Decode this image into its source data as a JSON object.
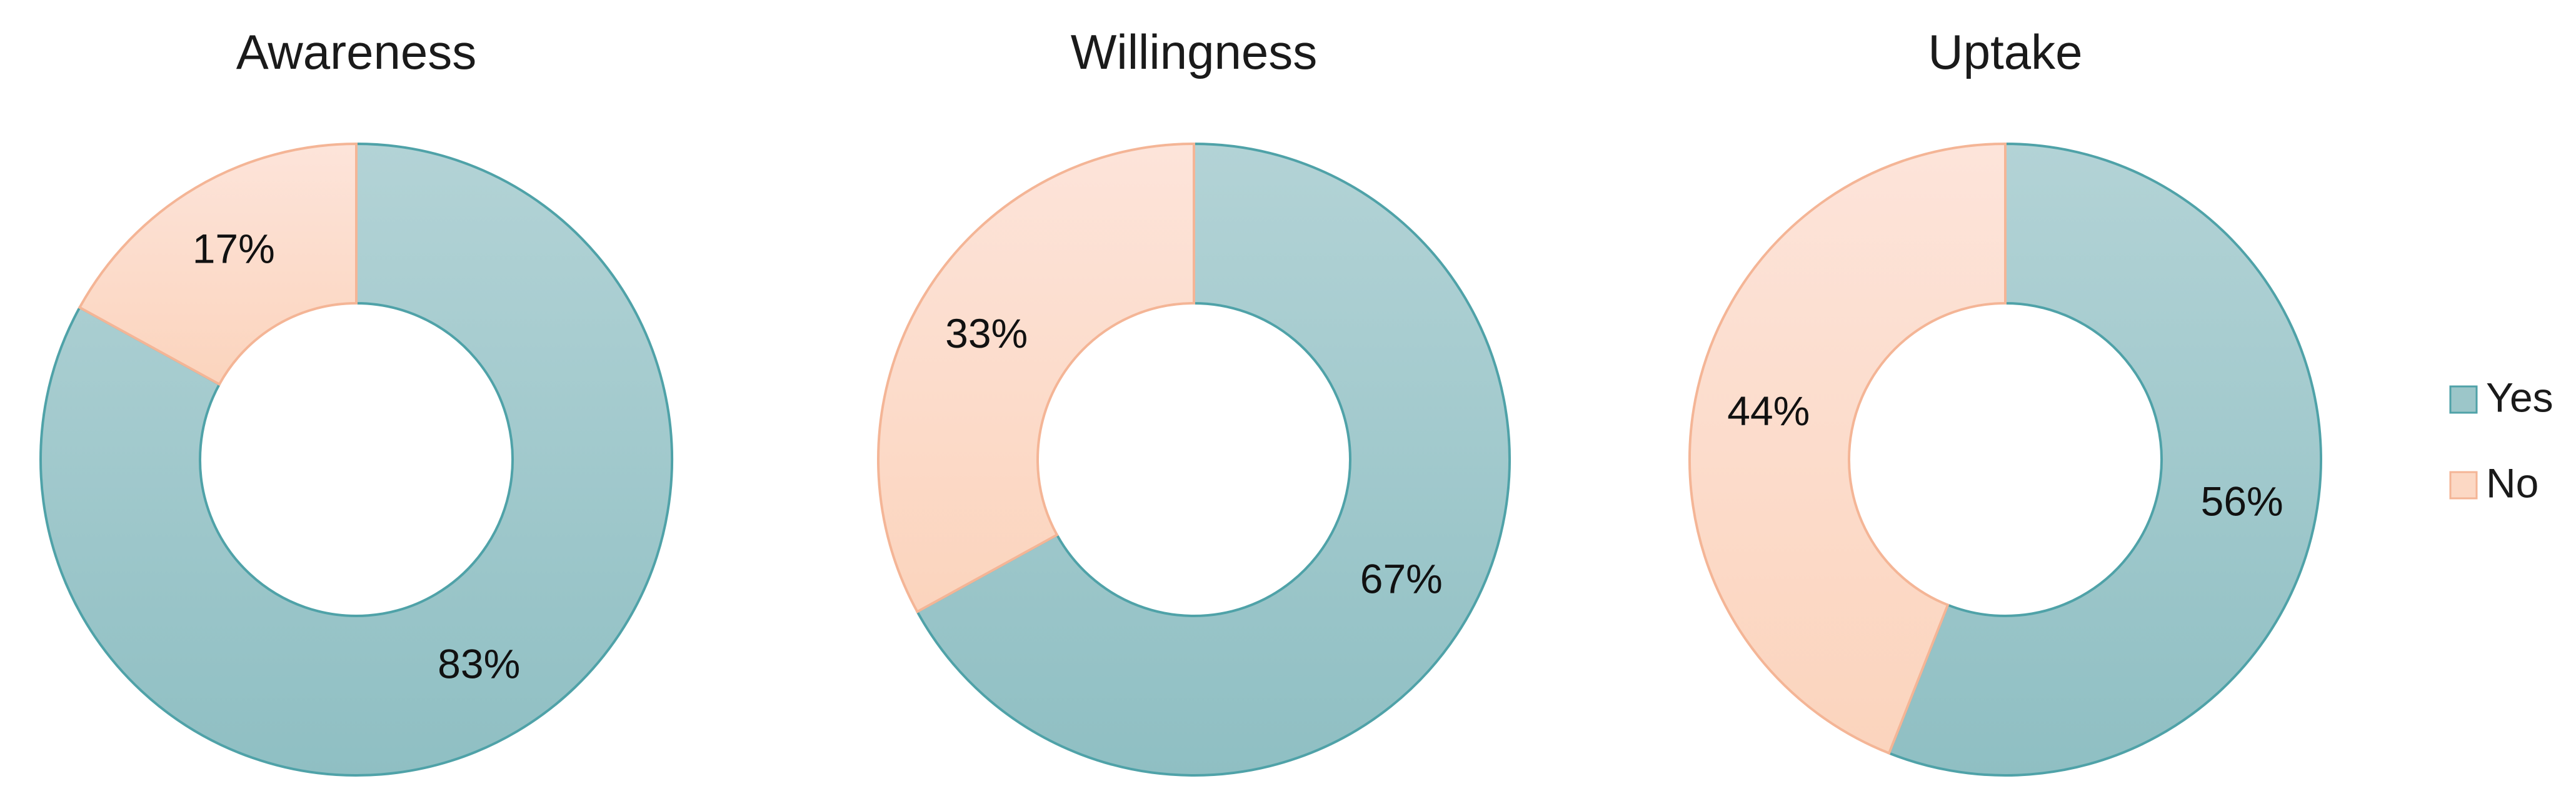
{
  "chart_data": [
    {
      "type": "pie",
      "title": "Awareness",
      "categories": [
        "Yes",
        "No"
      ],
      "values": [
        83,
        17
      ],
      "labels": [
        "83%",
        "17%"
      ]
    },
    {
      "type": "pie",
      "title": "Willingness",
      "categories": [
        "Yes",
        "No"
      ],
      "values": [
        67,
        33
      ],
      "labels": [
        "67%",
        "33%"
      ]
    },
    {
      "type": "pie",
      "title": "Uptake",
      "categories": [
        "Yes",
        "No"
      ],
      "values": [
        56,
        44
      ],
      "labels": [
        "56%",
        "44%"
      ]
    }
  ],
  "legend": {
    "placement": "right",
    "items": [
      {
        "label": "Yes",
        "color": "#9cc6c9",
        "stroke": "#4fa2a8"
      },
      {
        "label": "No",
        "color": "#fcd8c4",
        "stroke": "#f4b596"
      }
    ]
  },
  "colors": {
    "yes_top": "#b3d3d6",
    "yes_bottom": "#8fbfc3",
    "yes_stroke": "#4fa2a8",
    "no_top": "#fde4da",
    "no_bottom": "#fbd4bd",
    "no_stroke": "#f4b596"
  }
}
